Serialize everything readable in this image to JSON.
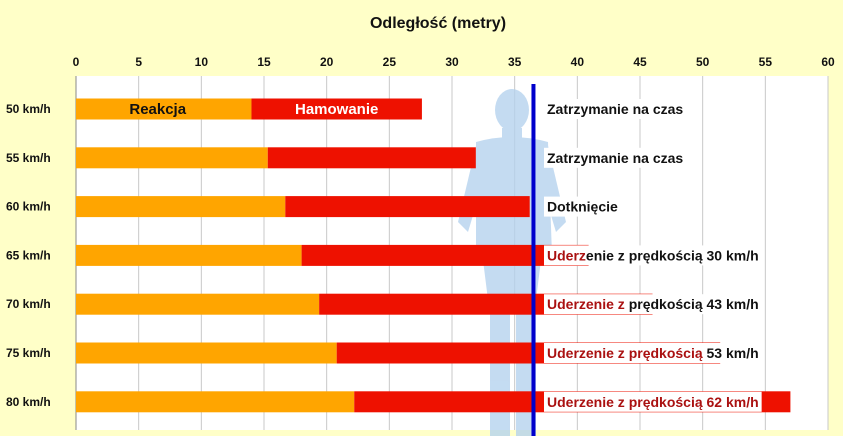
{
  "chart_data": {
    "type": "bar",
    "orientation": "horizontal",
    "stacked": true,
    "title": "Odległość (metry)",
    "xlabel": "Odległość (metry)",
    "ylabel": "",
    "xlim": [
      0,
      60
    ],
    "xticks": [
      0,
      5,
      10,
      15,
      20,
      25,
      30,
      35,
      40,
      45,
      50,
      55,
      60
    ],
    "grid": true,
    "categories": [
      "50 km/h",
      "55 km/h",
      "60 km/h",
      "65 km/h",
      "70 km/h",
      "75 km/h",
      "80 km/h"
    ],
    "series": [
      {
        "name": "Reakcja",
        "color": "#ffa500",
        "values": [
          14,
          15.3,
          16.7,
          18,
          19.4,
          20.8,
          22.2
        ]
      },
      {
        "name": "Hamowanie",
        "color": "#ee1100",
        "values": [
          13.6,
          16.6,
          19.5,
          22.9,
          26.6,
          30.6,
          34.8
        ]
      }
    ],
    "reference_line": {
      "value": 36.5,
      "color": "#0000cc"
    },
    "outcomes": [
      {
        "parts": [
          {
            "text": "Zatrzymanie na czas",
            "color": "#111111"
          }
        ]
      },
      {
        "parts": [
          {
            "text": "Zatrzymanie na czas",
            "color": "#111111"
          }
        ]
      },
      {
        "parts": [
          {
            "text": "Dotknięcie",
            "color": "#111111"
          }
        ]
      },
      {
        "parts": [
          {
            "text": "Uderz",
            "color": "#aa1111"
          },
          {
            "text": "enie z prędkością 30 km/h",
            "color": "#111111"
          }
        ]
      },
      {
        "parts": [
          {
            "text": "Uderzenie z ",
            "color": "#aa1111"
          },
          {
            "text": "prędkością 43 km/h",
            "color": "#111111"
          }
        ]
      },
      {
        "parts": [
          {
            "text": "Uderzenie z prędkością",
            "color": "#aa1111"
          },
          {
            "text": " 53 km/h",
            "color": "#111111"
          }
        ]
      },
      {
        "parts": [
          {
            "text": "Uderzenie z prędkością 62 km/h",
            "color": "#aa1111"
          }
        ]
      }
    ],
    "colors": {
      "background": "#ffffc8",
      "plot_background": "#ffffff",
      "grid": "#c8c8c8",
      "axis": "#888888",
      "figure": "#b4d2ee"
    }
  }
}
